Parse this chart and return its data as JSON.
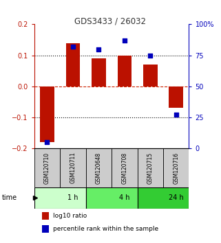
{
  "title": "GDS3433 / 26032",
  "samples": [
    "GSM120710",
    "GSM120711",
    "GSM120648",
    "GSM120708",
    "GSM120715",
    "GSM120716"
  ],
  "log10_ratio": [
    -0.18,
    0.14,
    0.09,
    0.1,
    0.07,
    -0.07
  ],
  "percentile_rank": [
    5,
    82,
    80,
    87,
    75,
    27
  ],
  "time_groups": [
    {
      "label": "1 h",
      "start": 0,
      "end": 2,
      "color": "#ccffcc"
    },
    {
      "label": "4 h",
      "start": 2,
      "end": 4,
      "color": "#66ee66"
    },
    {
      "label": "24 h",
      "start": 4,
      "end": 6,
      "color": "#33cc33"
    }
  ],
  "ylim_left": [
    -0.2,
    0.2
  ],
  "ylim_right": [
    0,
    100
  ],
  "yticks_left": [
    -0.2,
    -0.1,
    0.0,
    0.1,
    0.2
  ],
  "yticks_right": [
    0,
    25,
    50,
    75,
    100
  ],
  "ytick_labels_right": [
    "0",
    "25",
    "50",
    "75",
    "100%"
  ],
  "bar_color": "#bb1100",
  "dot_color": "#0000bb",
  "hline_color": "#cc2200",
  "grid_color": "#000000",
  "bar_width": 0.55,
  "dot_size": 25,
  "sample_box_color": "#cccccc",
  "title_color": "#333333",
  "title_fontsize": 8.5,
  "tick_fontsize": 7,
  "sample_fontsize": 5.5,
  "time_fontsize": 7,
  "legend_fontsize": 6.5
}
